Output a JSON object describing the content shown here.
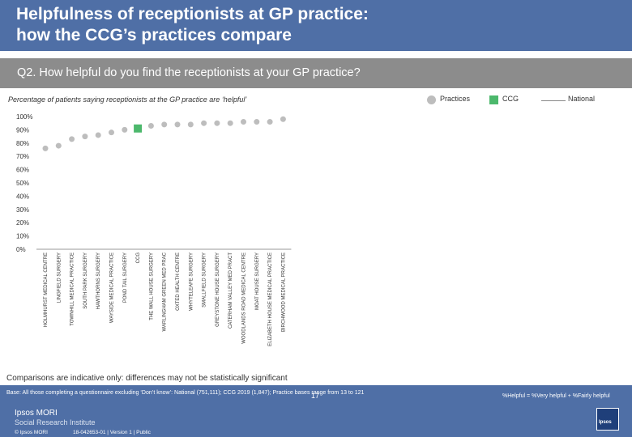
{
  "header": {
    "title_line1": "Helpfulness of receptionists at GP practice:",
    "title_line2": "how the CCG’s practices compare"
  },
  "question": "Q2. How helpful do you find the receptionists at your GP practice?",
  "subtitle": "Percentage of patients saying receptionists at the GP practice are ‘helpful’",
  "legend": {
    "practices": "Practices",
    "ccg": "CCG",
    "national": "National"
  },
  "colors": {
    "header": "#4f6fa6",
    "band": "#8c8c8c",
    "practice": "#bdbdbd",
    "ccg": "#4cb86c",
    "national": "#888888"
  },
  "chart_data": {
    "type": "scatter",
    "ylim": [
      0,
      100
    ],
    "yticks": [
      "0%",
      "10%",
      "20%",
      "30%",
      "40%",
      "50%",
      "60%",
      "70%",
      "80%",
      "90%",
      "100%"
    ],
    "categories": [
      "HOLMHURST MEDICAL CENTRE",
      "LINGFIELD SURGERY",
      "TOWNHILL MEDICAL PRACTICE",
      "SOUTH PARK SURGERY",
      "HAWTHORNS SURGERY",
      "WAYSIDE MEDICAL PRACTICE",
      "POND TAIL SURGERY",
      "CCG",
      "THE WALL HOUSE SURGERY",
      "WARLINGHAM GREEN MED PRAC",
      "OXTED HEALTH CENTRE",
      "WHYTELEAFE SURGERY",
      "SMALLFIELD SURGERY",
      "GREYSTONE HOUSE SURGERY",
      "CATERHAM VALLEY MED PRACT",
      "WOODLANDS ROAD MEDICAL CENTRE",
      "MOAT HOUSE SURGERY",
      "ELIZABETH HOUSE MEDICAL PRACTICE",
      "BIRCHWOOD MEDICAL PRACTICE"
    ],
    "values": [
      76,
      78,
      83,
      85,
      86,
      88,
      90,
      91,
      93,
      94,
      94,
      94,
      95,
      95,
      95,
      96,
      96,
      96,
      98
    ],
    "ccg_index": 7
  },
  "note": "Comparisons are indicative only: differences may not be statistically significant",
  "footer": {
    "base": "Base: All those completing a questionnaire excluding ‘Don’t know’: National (751,111); CCG 2019 (1,847); Practice bases range from 13 to 121",
    "formula": "%Helpful = %Very helpful + %Fairly helpful",
    "page": "17",
    "logo_line1": "Ipsos MORI",
    "logo_line2": "Social Research Institute",
    "copyright": "© Ipsos MORI",
    "version": "18-042653-01 | Version 1 | Public",
    "ipsos": "Ipsos"
  }
}
